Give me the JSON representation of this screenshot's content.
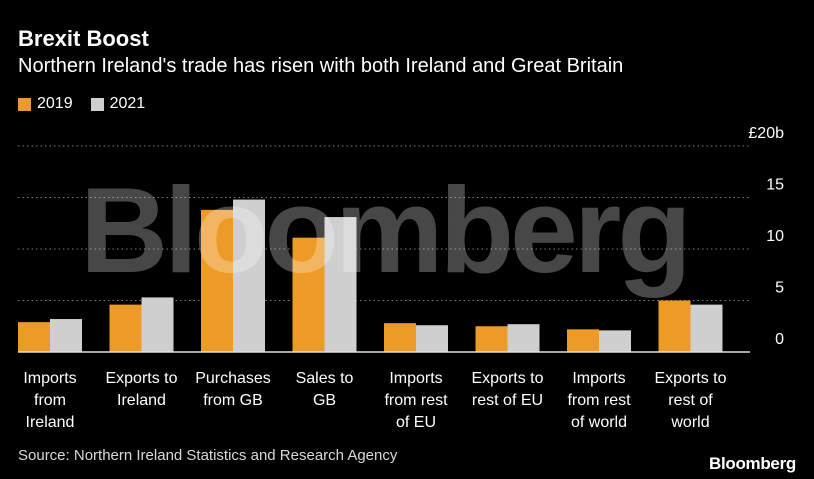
{
  "title": "Brexit Boost",
  "subtitle": "Northern Ireland's trade has risen with both Ireland and Great Britain",
  "source": "Source: Northern Ireland Statistics and Research Agency",
  "logo": "Bloomberg",
  "watermark": "Bloomberg",
  "colors": {
    "background": "#000000",
    "series_2019": "#ED9A27",
    "series_2021": "#CFCFCF",
    "gridline": "#7a7a7a"
  },
  "chart_data": {
    "type": "bar",
    "title": "Brexit Boost",
    "subtitle": "Northern Ireland's trade has risen with both Ireland and Great Britain",
    "xlabel": "",
    "ylabel": "",
    "y_unit_label": "£20b",
    "ylim": [
      0,
      20
    ],
    "yticks": [
      0,
      5,
      10,
      15,
      20
    ],
    "ytick_labels": [
      "0",
      "5",
      "10",
      "15",
      "£20b"
    ],
    "grid": true,
    "legend_position": "top-left",
    "categories": [
      [
        "Imports",
        "from",
        "Ireland"
      ],
      [
        "Exports to",
        "Ireland"
      ],
      [
        "Purchases",
        "from GB"
      ],
      [
        "Sales to",
        "GB"
      ],
      [
        "Imports",
        "from rest",
        "of EU"
      ],
      [
        "Exports to",
        "rest of EU"
      ],
      [
        "Imports",
        "from rest",
        "of world"
      ],
      [
        "Exports to",
        "rest of",
        "world"
      ]
    ],
    "series": [
      {
        "name": "2019",
        "color": "#ED9A27",
        "values": [
          2.9,
          4.6,
          13.8,
          11.1,
          2.8,
          2.5,
          2.2,
          5.0
        ]
      },
      {
        "name": "2021",
        "color": "#CFCFCF",
        "values": [
          3.2,
          5.3,
          14.8,
          13.1,
          2.6,
          2.7,
          2.1,
          4.6
        ]
      }
    ]
  }
}
